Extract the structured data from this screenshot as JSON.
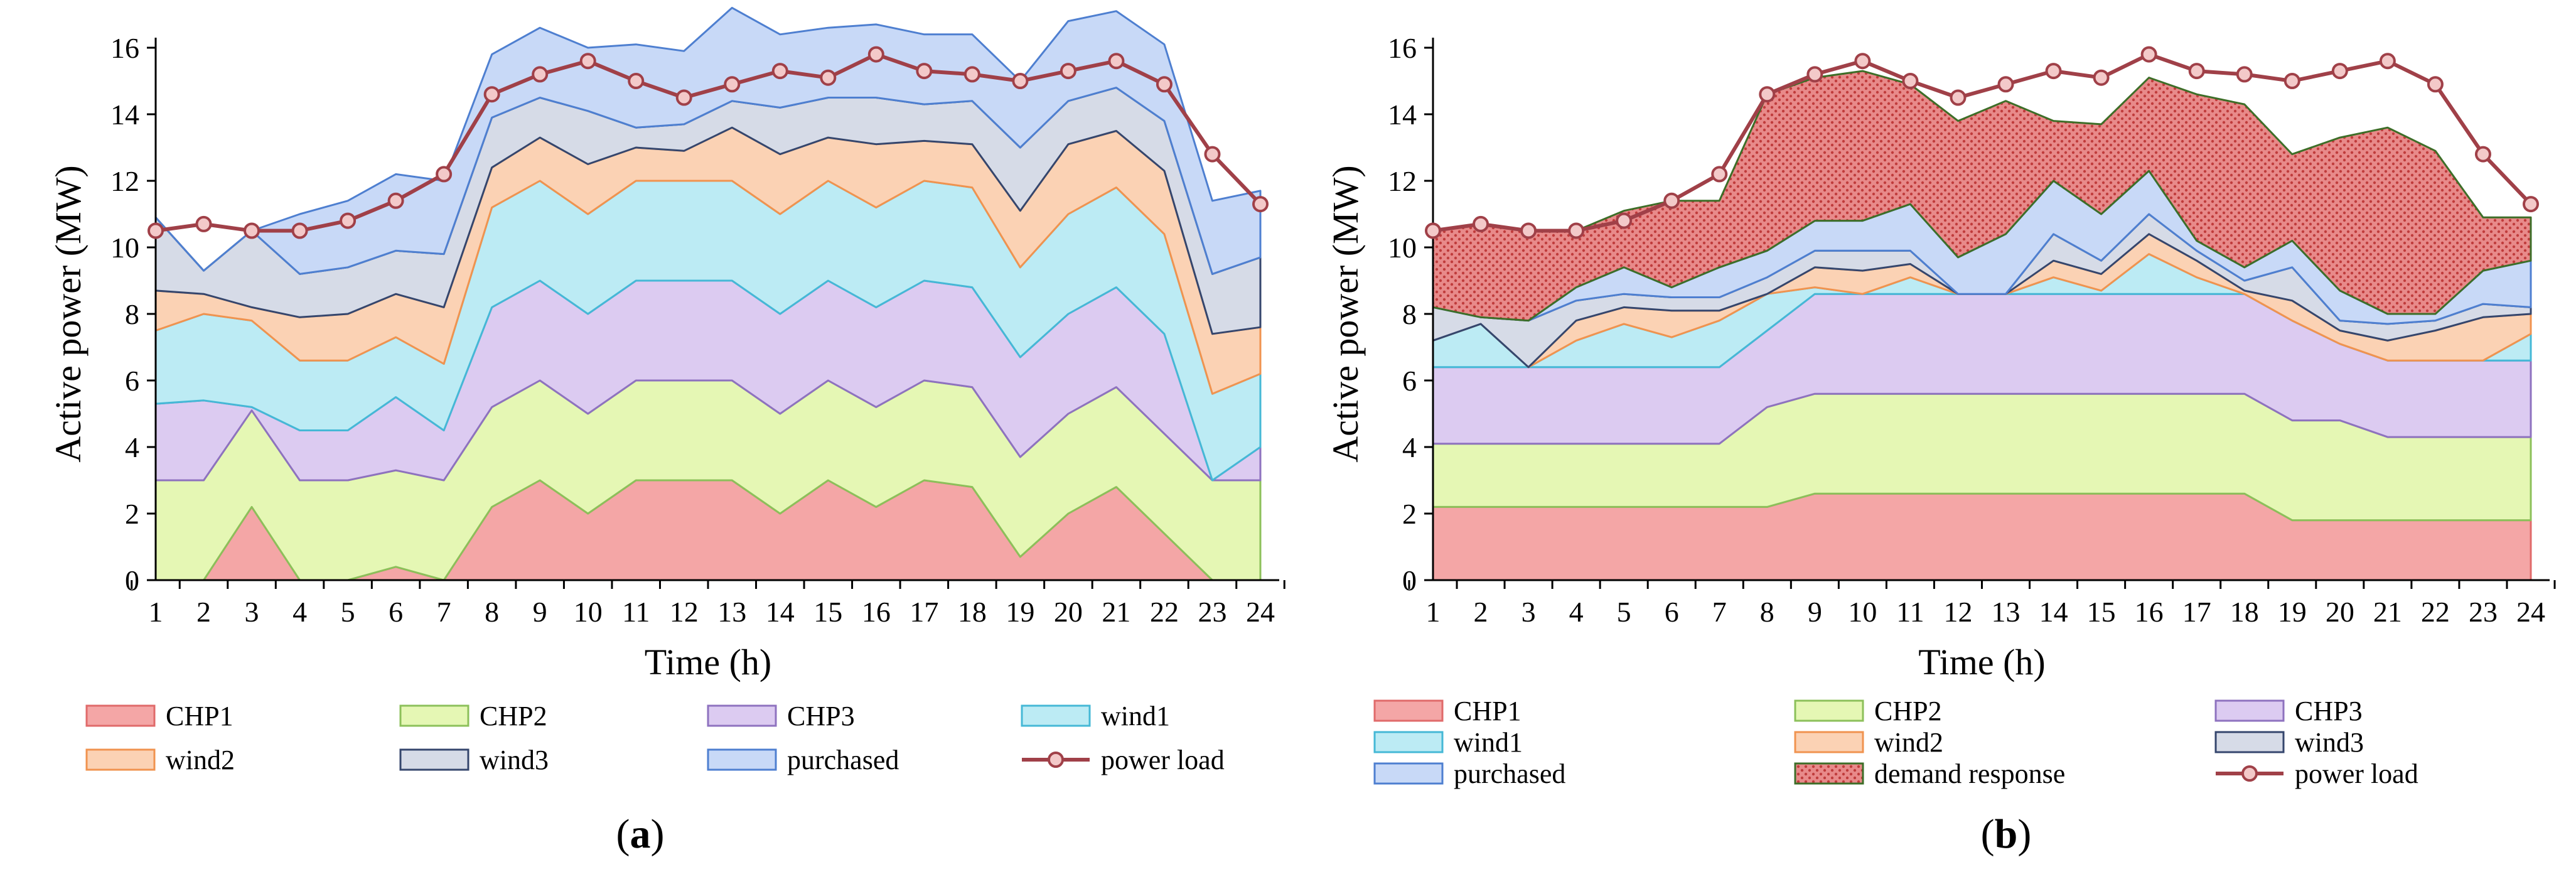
{
  "chart_data": [
    {
      "type": "area",
      "panel_label": "a",
      "xlabel": "Time (h)",
      "ylabel": "Active power (MW)",
      "x": [
        1,
        2,
        3,
        4,
        5,
        6,
        7,
        8,
        9,
        10,
        11,
        12,
        13,
        14,
        15,
        16,
        17,
        18,
        19,
        20,
        21,
        22,
        23,
        24
      ],
      "ylim": [
        0,
        16
      ],
      "yticks": [
        0,
        2,
        4,
        6,
        8,
        10,
        12,
        14,
        16
      ],
      "series": [
        {
          "name": "CHP1",
          "color": "#f4a6a6",
          "edge": "#e06a6a",
          "values": [
            0,
            0,
            2.2,
            0,
            0,
            0.4,
            0,
            2.2,
            3,
            2,
            3,
            3,
            3,
            2,
            3,
            2.2,
            3,
            2.8,
            0.7,
            2,
            2.8,
            1.4,
            0,
            0
          ]
        },
        {
          "name": "CHP2",
          "color": "#e5f7b4",
          "edge": "#8cc05a",
          "values": [
            3,
            3,
            2.9,
            3,
            3,
            2.9,
            3,
            3,
            3,
            3,
            3,
            3,
            3,
            3,
            3,
            3,
            3,
            3,
            3,
            3,
            3,
            3,
            3,
            3
          ]
        },
        {
          "name": "CHP3",
          "color": "#dccbf1",
          "edge": "#8e72bf",
          "values": [
            2.3,
            2.4,
            0.1,
            1.5,
            1.5,
            2.2,
            1.5,
            3,
            3,
            3,
            3,
            3,
            3,
            3,
            3,
            3,
            3,
            3,
            3,
            3,
            3,
            3,
            0,
            1
          ]
        },
        {
          "name": "wind1",
          "color": "#bcebf4",
          "edge": "#45b8d6",
          "values": [
            2.2,
            2.6,
            2.6,
            2.1,
            2.1,
            1.8,
            2,
            3,
            3,
            3,
            3,
            3,
            3,
            3,
            3,
            3,
            3,
            3,
            2.7,
            3,
            3,
            3,
            2.6,
            2.2
          ]
        },
        {
          "name": "wind2",
          "color": "#fbd2b4",
          "edge": "#f0934f",
          "values": [
            1.2,
            0.6,
            0.4,
            1.3,
            1.4,
            1.3,
            1.7,
            1.2,
            1.3,
            1.5,
            1,
            0.9,
            1.6,
            1.8,
            1.3,
            1.9,
            1.2,
            1.3,
            1.7,
            2.1,
            1.7,
            1.9,
            1.8,
            1.4
          ]
        },
        {
          "name": "wind3",
          "color": "#d6dbe7",
          "edge": "#35466d",
          "values": [
            2.2,
            0.7,
            2.3,
            1.3,
            1.4,
            1.3,
            1.6,
            1.5,
            1.2,
            1.6,
            0.6,
            0.8,
            0.8,
            1.4,
            1.2,
            1.4,
            1.1,
            1.3,
            1.9,
            1.3,
            1.3,
            1.5,
            1.8,
            2.1
          ]
        },
        {
          "name": "purchased",
          "color": "#c8d9f7",
          "edge": "#4e7fd0",
          "values": [
            0,
            0,
            0,
            1.8,
            2,
            2.3,
            2.2,
            1.9,
            2.1,
            1.9,
            2.5,
            2.2,
            2.8,
            2.2,
            2.1,
            2.2,
            2.1,
            2,
            2,
            2.4,
            2.3,
            2.3,
            2.2,
            2
          ]
        }
      ],
      "power_load": {
        "name": "power load",
        "color": "#a04048",
        "values": [
          10.5,
          10.7,
          10.5,
          10.5,
          10.8,
          11.4,
          12.2,
          14.6,
          15.2,
          15.6,
          15,
          14.5,
          14.9,
          15.3,
          15.1,
          15.8,
          15.3,
          15.2,
          15,
          15.3,
          15.6,
          14.9,
          12.8,
          11.3
        ]
      },
      "legend": [
        {
          "label": "CHP1",
          "kind": "area",
          "color": "#f4a6a6",
          "edge": "#e06a6a"
        },
        {
          "label": "CHP2",
          "kind": "area",
          "color": "#e5f7b4",
          "edge": "#8cc05a"
        },
        {
          "label": "CHP3",
          "kind": "area",
          "color": "#dccbf1",
          "edge": "#8e72bf"
        },
        {
          "label": "wind1",
          "kind": "area",
          "color": "#bcebf4",
          "edge": "#45b8d6"
        },
        {
          "label": "wind2",
          "kind": "area",
          "color": "#fbd2b4",
          "edge": "#f0934f"
        },
        {
          "label": "wind3",
          "kind": "area",
          "color": "#d6dbe7",
          "edge": "#35466d"
        },
        {
          "label": "purchased",
          "kind": "area",
          "color": "#c8d9f7",
          "edge": "#4e7fd0"
        },
        {
          "label": "power load",
          "kind": "line",
          "color": "#a04048"
        }
      ]
    },
    {
      "type": "area",
      "panel_label": "b",
      "xlabel": "Time (h)",
      "ylabel": "Active power (MW)",
      "x": [
        1,
        2,
        3,
        4,
        5,
        6,
        7,
        8,
        9,
        10,
        11,
        12,
        13,
        14,
        15,
        16,
        17,
        18,
        19,
        20,
        21,
        22,
        23,
        24
      ],
      "ylim": [
        0,
        16
      ],
      "yticks": [
        0,
        2,
        4,
        6,
        8,
        10,
        12,
        14,
        16
      ],
      "series": [
        {
          "name": "CHP1",
          "color": "#f4a6a6",
          "edge": "#e06a6a",
          "values": [
            2.2,
            2.2,
            2.2,
            2.2,
            2.2,
            2.2,
            2.2,
            2.2,
            2.6,
            2.6,
            2.6,
            2.6,
            2.6,
            2.6,
            2.6,
            2.6,
            2.6,
            2.6,
            1.8,
            1.8,
            1.8,
            1.8,
            1.8,
            1.8
          ]
        },
        {
          "name": "CHP2",
          "color": "#e5f7b4",
          "edge": "#8cc05a",
          "values": [
            1.9,
            1.9,
            1.9,
            1.9,
            1.9,
            1.9,
            1.9,
            3,
            3,
            3,
            3,
            3,
            3,
            3,
            3,
            3,
            3,
            3,
            3,
            3,
            2.5,
            2.5,
            2.5,
            2.5
          ]
        },
        {
          "name": "CHP3",
          "color": "#dccbf1",
          "edge": "#8e72bf",
          "values": [
            2.3,
            2.3,
            2.3,
            2.3,
            2.3,
            2.3,
            2.3,
            2.3,
            3,
            3,
            3,
            3,
            3,
            3,
            3,
            3,
            3,
            3,
            3,
            2.3,
            2.3,
            2.3,
            2.3,
            2.3
          ]
        },
        {
          "name": "wind1",
          "color": "#bcebf4",
          "edge": "#45b8d6",
          "values": [
            0.8,
            1.3,
            0,
            0.8,
            1.3,
            0.9,
            1.4,
            1.1,
            0.2,
            0,
            0.5,
            0,
            0,
            0.5,
            0.1,
            1.2,
            0.5,
            0,
            0,
            0,
            0,
            0,
            0,
            0.8
          ]
        },
        {
          "name": "wind2",
          "color": "#fbd2b4",
          "edge": "#f0934f",
          "values": [
            0,
            0,
            0,
            0.6,
            0.5,
            0.8,
            0.3,
            0,
            0.6,
            0.7,
            0.4,
            0,
            0,
            0.5,
            0.5,
            0.6,
            0.5,
            0.1,
            0.6,
            0.4,
            0.6,
            0.9,
            1.3,
            0.6
          ]
        },
        {
          "name": "wind3",
          "color": "#d6dbe7",
          "edge": "#35466d",
          "values": [
            1,
            0.2,
            1.4,
            0.6,
            0.4,
            0.4,
            0.4,
            0.5,
            0.5,
            0.6,
            0.4,
            0,
            0,
            0.8,
            0.4,
            0.6,
            0.3,
            0.3,
            1,
            0.3,
            0.5,
            0.3,
            0.4,
            0.2
          ]
        },
        {
          "name": "purchased",
          "color": "#c8d9f7",
          "edge": "#4e7fd0",
          "values": [
            0,
            0,
            0,
            0.4,
            0.8,
            0.3,
            0.9,
            0.8,
            0.9,
            0.9,
            1.4,
            1.1,
            1.8,
            1.6,
            1.4,
            1.3,
            0.3,
            0.4,
            0.8,
            0.9,
            0.3,
            0.2,
            1,
            1.4
          ]
        },
        {
          "name": "demand response",
          "color": "#e06a6a",
          "edge": "#3d6e28",
          "pattern": true,
          "values": [
            2.3,
            2.8,
            2.7,
            1.7,
            1.7,
            2.6,
            2,
            4.7,
            4.3,
            4.5,
            3.6,
            4.1,
            4,
            1.8,
            2.7,
            2.8,
            4.4,
            4.9,
            2.6,
            4.6,
            5.6,
            4.9,
            1.6,
            1.3
          ]
        }
      ],
      "power_load": {
        "name": "power load",
        "color": "#a04048",
        "values": [
          10.5,
          10.7,
          10.5,
          10.5,
          10.8,
          11.4,
          12.2,
          14.6,
          15.2,
          15.6,
          15,
          14.5,
          14.9,
          15.3,
          15.1,
          15.8,
          15.3,
          15.2,
          15,
          15.3,
          15.6,
          14.9,
          12.8,
          11.3
        ]
      },
      "legend": [
        {
          "label": "CHP1",
          "kind": "area",
          "color": "#f4a6a6",
          "edge": "#e06a6a"
        },
        {
          "label": "CHP2",
          "kind": "area",
          "color": "#e5f7b4",
          "edge": "#8cc05a"
        },
        {
          "label": "CHP3",
          "kind": "area",
          "color": "#dccbf1",
          "edge": "#8e72bf"
        },
        {
          "label": "wind1",
          "kind": "area",
          "color": "#bcebf4",
          "edge": "#45b8d6"
        },
        {
          "label": "wind2",
          "kind": "area",
          "color": "#fbd2b4",
          "edge": "#f0934f"
        },
        {
          "label": "wind3",
          "kind": "area",
          "color": "#d6dbe7",
          "edge": "#35466d"
        },
        {
          "label": "purchased",
          "kind": "area",
          "color": "#c8d9f7",
          "edge": "#4e7fd0"
        },
        {
          "label": "demand response",
          "kind": "pattern",
          "color": "#e06a6a",
          "edge": "#3d6e28"
        },
        {
          "label": "power load",
          "kind": "line",
          "color": "#a04048"
        }
      ]
    }
  ]
}
